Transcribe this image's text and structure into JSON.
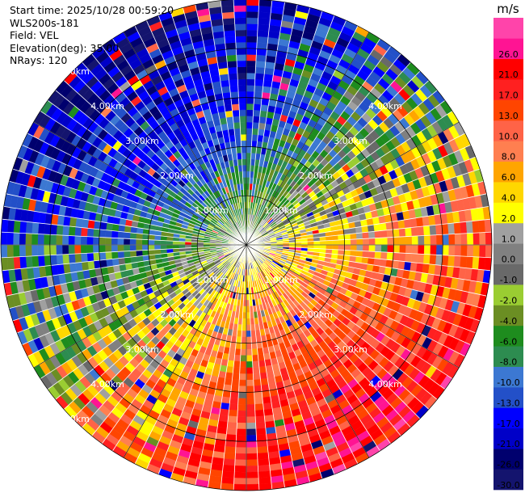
{
  "info": {
    "start_time": "Start time: 2025/10/28 00:59:20",
    "station": "WLS200s-181",
    "field": "Field: VEL",
    "elevation": "Elevation(deg): 35.00",
    "nrays": "NRays: 120"
  },
  "chart_data": {
    "type": "heatmap",
    "projection": "polar-ppi",
    "field": "VEL",
    "units": "m/s",
    "nrays": 120,
    "elevation_deg": 35.0,
    "max_range_km": 5.0,
    "range_rings_km": [
      1,
      2,
      3,
      4,
      5
    ],
    "ring_labels": [
      "1.00km",
      "2.00km",
      "3.00km",
      "4.00km",
      "5.00km"
    ],
    "colorbar": {
      "title": "m/s",
      "levels": [
        -30.0,
        -26.0,
        -21.0,
        -17.0,
        -13.0,
        -10.0,
        -8.0,
        -6.0,
        -4.0,
        -2.0,
        -1.0,
        0.0,
        1.0,
        2.0,
        4.0,
        6.0,
        8.0,
        10.0,
        13.0,
        17.0,
        21.0,
        26.0,
        30.0
      ],
      "tick_labels": [
        "-30.0",
        "-26.0",
        "-21.0",
        "-17.0",
        "-13.0",
        "-10.0",
        "-8.0",
        "-6.0",
        "-4.0",
        "-2.0",
        "-1.0",
        "0.0",
        "1.0",
        "2.0",
        "4.0",
        "6.0",
        "8.0",
        "10.0",
        "13.0",
        "17.0",
        "21.0",
        "26.0"
      ],
      "colors": [
        "#14146e",
        "#00006e",
        "#0000c8",
        "#0000ff",
        "#2350c8",
        "#3c78d2",
        "#2d8c50",
        "#1e8c1e",
        "#6b8e23",
        "#9acd32",
        "#696969",
        "#808080",
        "#a0a0a0",
        "#ffff00",
        "#ffd700",
        "#ffa500",
        "#ff7f50",
        "#ff6347",
        "#ff4500",
        "#ff2020",
        "#ff0000",
        "#ff1493"
      ],
      "top_color": "#ff44aa"
    }
  }
}
